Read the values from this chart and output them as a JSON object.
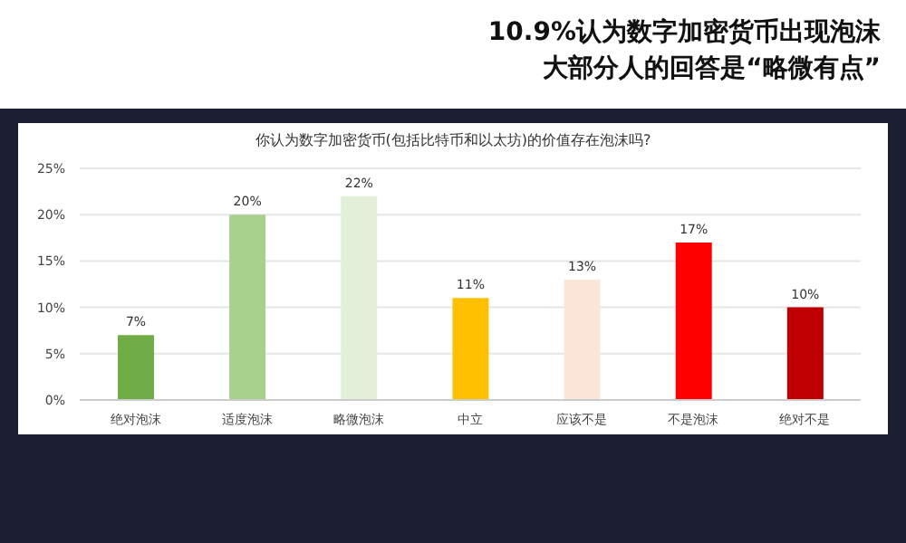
{
  "chart_data": {
    "type": "bar",
    "title": "10.9%认为数字加密货币出现泡沫",
    "subtitle": "大部分人的回答是“略微有点”",
    "annotations": [
      "你认为数字加密货币(包括比特币和以太坊)的价值存在泡沫吗?"
    ],
    "categories": [
      "绝对泡沫",
      "适度泡沫",
      "略微泡沫",
      "中立",
      "应该不是",
      "不是泡沫",
      "绝对不是"
    ],
    "values": [
      7,
      20,
      22,
      11,
      13,
      17,
      10
    ],
    "colors": [
      "#70ad47",
      "#a9d18e",
      "#e2f0d9",
      "#ffc000",
      "#fbe5d6",
      "#ff0000",
      "#c00000"
    ],
    "value_labels": [
      "7%",
      "20%",
      "22%",
      "11%",
      "13%",
      "17%",
      "10%"
    ],
    "ylim": [
      0,
      25
    ],
    "yticks": [
      {
        "value": 0,
        "label": "0%"
      },
      {
        "value": 5,
        "label": "5%"
      },
      {
        "value": 10,
        "label": "10%"
      },
      {
        "value": 15,
        "label": "15%"
      },
      {
        "value": 20,
        "label": "20%"
      },
      {
        "value": 25,
        "label": "25%"
      }
    ],
    "grid": "y",
    "legend": false
  }
}
